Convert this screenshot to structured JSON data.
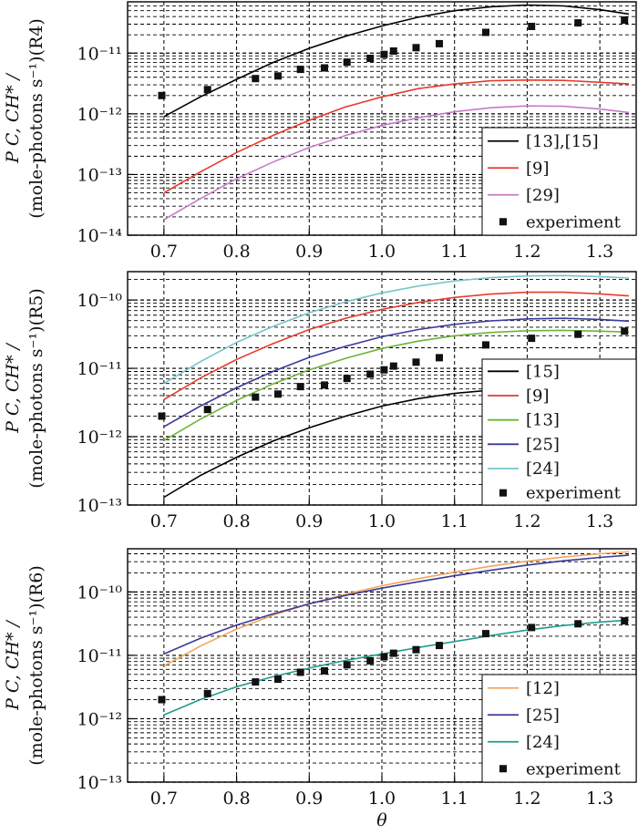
{
  "colors": {
    "black": "#000000",
    "red": "#e63c2c",
    "violet": "#c77bc8",
    "green": "#6cb536",
    "navy": "#3a3a98",
    "cyan": "#78c5cc",
    "orange": "#f3a55a",
    "teal": "#1f9e8a"
  },
  "xlabel": "θ",
  "x_ticks": [
    "0.7",
    "0.8",
    "0.9",
    "1.0",
    "1.1",
    "1.2",
    "1.3"
  ],
  "chart_data": [
    {
      "type": "line",
      "panel": "R4",
      "ylabel_line1": "P C, CH* /",
      "ylabel_line2": "(mole-photons s⁻¹)(R4)",
      "xlim": [
        0.65,
        1.35
      ],
      "ylim": [
        1e-14,
        7e-11
      ],
      "y_ticks": [
        {
          "value": 1e-11,
          "label": "10⁻¹¹"
        },
        {
          "value": 1e-12,
          "label": "10⁻¹²"
        },
        {
          "value": 1e-13,
          "label": "10⁻¹³"
        },
        {
          "value": 1e-14,
          "label": "10⁻¹⁴"
        }
      ],
      "legend_position": "bottom-right",
      "series": [
        {
          "name": "[13],[15]",
          "color": "#000000",
          "x": [
            0.7,
            0.75,
            0.8,
            0.85,
            0.9,
            0.95,
            1.0,
            1.05,
            1.1,
            1.15,
            1.2,
            1.25,
            1.3,
            1.34
          ],
          "y": [
            9e-13,
            1.9e-12,
            3.7e-12,
            7e-12,
            1.2e-11,
            1.9e-11,
            2.8e-11,
            3.9e-11,
            5e-11,
            5.8e-11,
            6.2e-11,
            6e-11,
            5.2e-11,
            4.4e-11
          ]
        },
        {
          "name": "[9]",
          "color": "#e63c2c",
          "x": [
            0.7,
            0.75,
            0.8,
            0.85,
            0.9,
            0.95,
            1.0,
            1.05,
            1.1,
            1.15,
            1.2,
            1.25,
            1.3,
            1.34
          ],
          "y": [
            5e-14,
            1.1e-13,
            2.3e-13,
            4.4e-13,
            7.8e-13,
            1.3e-12,
            1.9e-12,
            2.6e-12,
            3.1e-12,
            3.5e-12,
            3.6e-12,
            3.55e-12,
            3.3e-12,
            3.1e-12
          ]
        },
        {
          "name": "[29]",
          "color": "#c77bc8",
          "x": [
            0.7,
            0.75,
            0.8,
            0.85,
            0.9,
            0.95,
            1.0,
            1.05,
            1.1,
            1.15,
            1.2,
            1.25,
            1.3,
            1.34
          ],
          "y": [
            1.8e-14,
            4e-14,
            8.5e-14,
            1.6e-13,
            2.8e-13,
            4.4e-13,
            6.4e-13,
            8.6e-13,
            1.08e-12,
            1.26e-12,
            1.35e-12,
            1.33e-12,
            1.2e-12,
            1.05e-12
          ]
        }
      ],
      "experiment": {
        "name": "experiment",
        "x": [
          0.697,
          0.76,
          0.826,
          0.857,
          0.888,
          0.921,
          0.952,
          0.984,
          1.003,
          1.016,
          1.047,
          1.079,
          1.143,
          1.206,
          1.27,
          1.334
        ],
        "y": [
          2e-12,
          2.5e-12,
          3.8e-12,
          4.2e-12,
          5.4e-12,
          5.7e-12,
          7.1e-12,
          8.2e-12,
          9.5e-12,
          1.08e-11,
          1.23e-11,
          1.43e-11,
          2.2e-11,
          2.75e-11,
          3.15e-11,
          3.5e-11
        ]
      }
    },
    {
      "type": "line",
      "panel": "R5",
      "ylabel_line1": "P C, CH* /",
      "ylabel_line2": "(mole-photons s⁻¹)(R5)",
      "xlim": [
        0.65,
        1.35
      ],
      "ylim": [
        1e-13,
        2.6e-10
      ],
      "y_ticks": [
        {
          "value": 1e-10,
          "label": "10⁻¹⁰"
        },
        {
          "value": 1e-11,
          "label": "10⁻¹¹"
        },
        {
          "value": 1e-12,
          "label": "10⁻¹²"
        },
        {
          "value": 1e-13,
          "label": "10⁻¹³"
        }
      ],
      "legend_position": "bottom-right",
      "series": [
        {
          "name": "[15]",
          "color": "#000000",
          "x": [
            0.7,
            0.75,
            0.8,
            0.85,
            0.9,
            0.95,
            1.0,
            1.05,
            1.1,
            1.15,
            1.2,
            1.25,
            1.3,
            1.34
          ],
          "y": [
            1.3e-13,
            2.7e-13,
            5e-13,
            8.6e-13,
            1.35e-12,
            2e-12,
            2.8e-12,
            3.6e-12,
            4.3e-12,
            4.8e-12,
            5e-12,
            5e-12,
            4.8e-12,
            4.6e-12
          ]
        },
        {
          "name": "[9]",
          "color": "#e63c2c",
          "x": [
            0.7,
            0.75,
            0.8,
            0.85,
            0.9,
            0.95,
            1.0,
            1.05,
            1.1,
            1.15,
            1.2,
            1.25,
            1.3,
            1.34
          ],
          "y": [
            3.5e-12,
            7.2e-12,
            1.35e-11,
            2.3e-11,
            3.7e-11,
            5.4e-11,
            7.3e-11,
            9.2e-11,
            1.09e-10,
            1.22e-10,
            1.3e-10,
            1.3e-10,
            1.23e-10,
            1.15e-10
          ]
        },
        {
          "name": "[13]",
          "color": "#6cb536",
          "x": [
            0.7,
            0.75,
            0.8,
            0.85,
            0.9,
            0.95,
            1.0,
            1.05,
            1.1,
            1.15,
            1.2,
            1.25,
            1.3,
            1.34
          ],
          "y": [
            8.8e-13,
            1.8e-12,
            3.4e-12,
            5.9e-12,
            9.5e-12,
            1.4e-11,
            1.95e-11,
            2.5e-11,
            3e-11,
            3.35e-11,
            3.55e-11,
            3.6e-11,
            3.5e-11,
            3.4e-11
          ]
        },
        {
          "name": "[25]",
          "color": "#3a3a98",
          "x": [
            0.7,
            0.75,
            0.8,
            0.85,
            0.9,
            0.95,
            1.0,
            1.05,
            1.1,
            1.15,
            1.2,
            1.25,
            1.3,
            1.34
          ],
          "y": [
            1.4e-12,
            2.8e-12,
            5.2e-12,
            9e-12,
            1.45e-11,
            2.1e-11,
            2.9e-11,
            3.7e-11,
            4.4e-11,
            4.95e-11,
            5.3e-11,
            5.4e-11,
            5.2e-11,
            4.9e-11
          ]
        },
        {
          "name": "[24]",
          "color": "#78c5cc",
          "x": [
            0.7,
            0.75,
            0.8,
            0.85,
            0.9,
            0.95,
            1.0,
            1.05,
            1.1,
            1.15,
            1.2,
            1.25,
            1.3,
            1.34
          ],
          "y": [
            6e-12,
            1.25e-11,
            2.4e-11,
            4.1e-11,
            6.5e-11,
            9.4e-11,
            1.27e-10,
            1.6e-10,
            1.9e-10,
            2.12e-10,
            2.25e-10,
            2.28e-10,
            2.2e-10,
            2.1e-10
          ]
        }
      ],
      "experiment": {
        "name": "experiment",
        "x": [
          0.697,
          0.76,
          0.826,
          0.857,
          0.888,
          0.921,
          0.952,
          0.984,
          1.003,
          1.016,
          1.047,
          1.079,
          1.143,
          1.206,
          1.27,
          1.334
        ],
        "y": [
          2e-12,
          2.5e-12,
          3.8e-12,
          4.2e-12,
          5.4e-12,
          5.7e-12,
          7.1e-12,
          8.2e-12,
          9.5e-12,
          1.08e-11,
          1.23e-11,
          1.43e-11,
          2.2e-11,
          2.75e-11,
          3.15e-11,
          3.5e-11
        ]
      }
    },
    {
      "type": "line",
      "panel": "R6",
      "ylabel_line1": "P C, CH* /",
      "ylabel_line2": "(mole-photons s⁻¹)(R6)",
      "xlim": [
        0.65,
        1.35
      ],
      "ylim": [
        1e-13,
        4.8e-10
      ],
      "y_ticks": [
        {
          "value": 1e-10,
          "label": "10⁻¹⁰"
        },
        {
          "value": 1e-11,
          "label": "10⁻¹¹"
        },
        {
          "value": 1e-12,
          "label": "10⁻¹²"
        },
        {
          "value": 1e-13,
          "label": "10⁻¹³"
        }
      ],
      "legend_position": "bottom-right",
      "series": [
        {
          "name": "[12]",
          "color": "#f3a55a",
          "x": [
            0.7,
            0.75,
            0.8,
            0.85,
            0.9,
            0.95,
            1.0,
            1.05,
            1.1,
            1.15,
            1.2,
            1.25,
            1.3,
            1.34
          ],
          "y": [
            6.8e-12,
            1.4e-11,
            2.6e-11,
            4.3e-11,
            6.5e-11,
            9.2e-11,
            1.25e-10,
            1.62e-10,
            2.05e-10,
            2.55e-10,
            3.05e-10,
            3.55e-10,
            4e-10,
            4.3e-10
          ]
        },
        {
          "name": "[25]",
          "color": "#3a3a98",
          "x": [
            0.7,
            0.75,
            0.8,
            0.85,
            0.9,
            0.95,
            1.0,
            1.05,
            1.1,
            1.15,
            1.2,
            1.25,
            1.3,
            1.34
          ],
          "y": [
            1.05e-11,
            1.85e-11,
            3e-11,
            4.5e-11,
            6.5e-11,
            8.8e-11,
            1.15e-10,
            1.45e-10,
            1.8e-10,
            2.2e-10,
            2.65e-10,
            3.1e-10,
            3.5e-10,
            3.8e-10
          ]
        },
        {
          "name": "[24]",
          "color": "#1f9e8a",
          "x": [
            0.7,
            0.75,
            0.8,
            0.85,
            0.9,
            0.95,
            1.0,
            1.05,
            1.1,
            1.15,
            1.2,
            1.25,
            1.3,
            1.34
          ],
          "y": [
            1.15e-12,
            2e-12,
            3.2e-12,
            4.6e-12,
            6.3e-12,
            8.3e-12,
            1.05e-11,
            1.33e-11,
            1.65e-11,
            2.05e-11,
            2.5e-11,
            2.95e-11,
            3.35e-11,
            3.6e-11
          ]
        }
      ],
      "experiment": {
        "name": "experiment",
        "x": [
          0.697,
          0.76,
          0.826,
          0.857,
          0.888,
          0.921,
          0.952,
          0.984,
          1.003,
          1.016,
          1.047,
          1.079,
          1.143,
          1.206,
          1.27,
          1.334
        ],
        "y": [
          2e-12,
          2.5e-12,
          3.8e-12,
          4.2e-12,
          5.4e-12,
          5.7e-12,
          7.1e-12,
          8.2e-12,
          9.5e-12,
          1.08e-11,
          1.23e-11,
          1.43e-11,
          2.2e-11,
          2.75e-11,
          3.15e-11,
          3.5e-11
        ]
      }
    }
  ]
}
